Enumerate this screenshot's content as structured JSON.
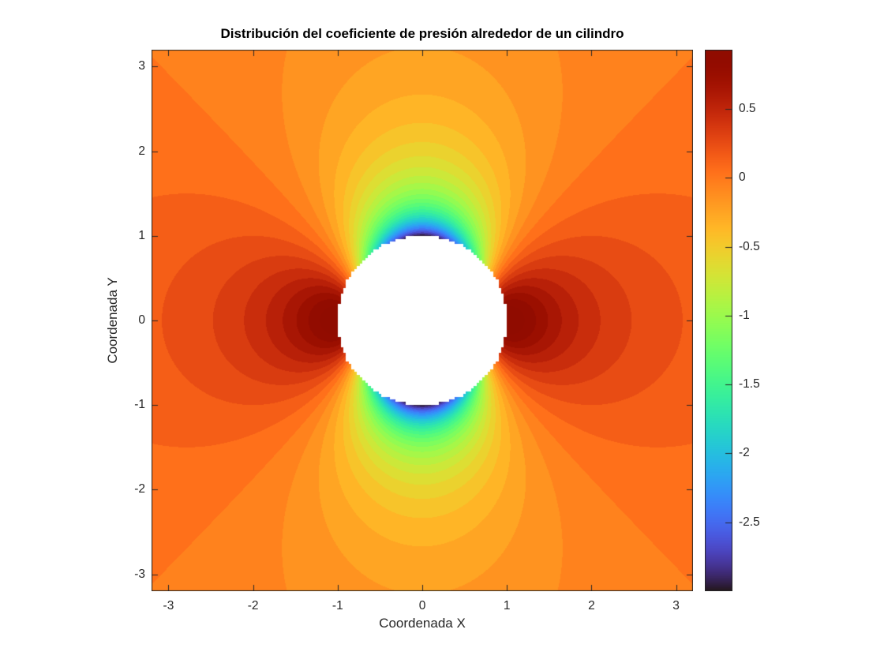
{
  "chart_data": {
    "type": "heatmap",
    "subtype": "filled-contour",
    "title": "Distribución del coeficiente de presión alrededor de un cilindro",
    "xlabel": "Coordenada X",
    "ylabel": "Coordenada Y",
    "xlim": [
      -3.2,
      3.2
    ],
    "ylim": [
      -3.2,
      3.2
    ],
    "x_ticks": [
      -3,
      -2,
      -1,
      0,
      1,
      2,
      3
    ],
    "y_ticks": [
      -3,
      -2,
      -1,
      0,
      1,
      2,
      3
    ],
    "grid": false,
    "legend_position": "none",
    "colorbar": {
      "position": "right",
      "ticks": [
        0.5,
        0,
        -0.5,
        -1,
        -1.5,
        -2,
        -2.5
      ],
      "clim": [
        -3,
        0.93
      ],
      "colormap": "turbo"
    },
    "contours": {
      "level_min": -3.0,
      "level_step": 0.1,
      "level_max": 1.0
    },
    "field": {
      "name": "pressure-coefficient-potential-flow-around-cylinder",
      "formula": "Cp = 1 - ((1 - 1/r^2)^2*cos^2(theta) + (1 + 1/r^2)^2*sin^2(theta))",
      "cylinder_radius": 1,
      "cylinder_center": [
        0,
        0
      ],
      "masked_region": "white disk r < 1",
      "grid_n": 200,
      "cp_surface_min": -3,
      "cp_stagnation_max": 1
    },
    "colors": {
      "axes": "#262626",
      "title_text": "#000000",
      "background": "#ffffff",
      "mask_fill": "#ffffff"
    }
  }
}
